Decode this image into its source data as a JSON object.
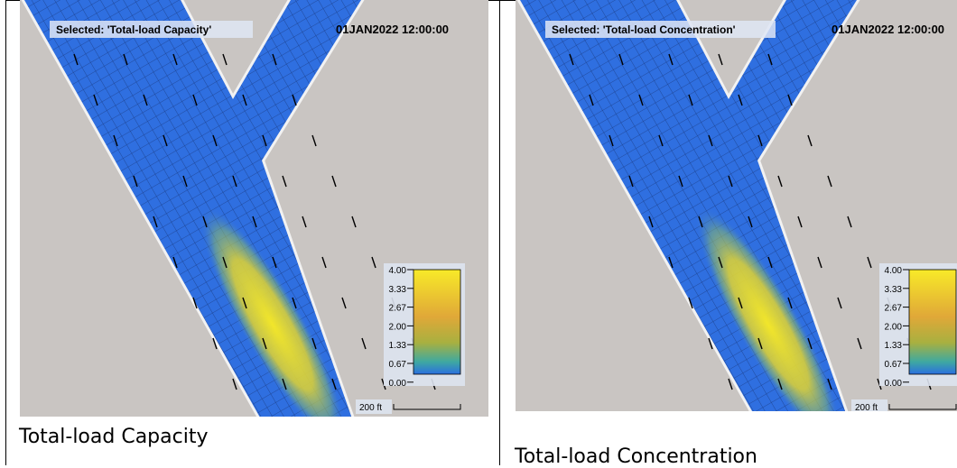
{
  "panels": [
    {
      "selected": "Selected: 'Total-load Capacity'",
      "timestamp": "01JAN2022 12:00:00",
      "legend_ticks": [
        "4.00",
        "3.33",
        "2.67",
        "2.00",
        "1.33",
        "0.67",
        "0.00"
      ],
      "scale": "200 ft",
      "caption": "Total-load Capacity"
    },
    {
      "selected": "Selected: 'Total-load Concentration'",
      "timestamp": "01JAN2022 12:00:00",
      "legend_ticks": [
        "4.00",
        "3.33",
        "2.67",
        "2.00",
        "1.33",
        "0.67",
        "0.00"
      ],
      "scale": "200 ft",
      "caption": "Total-load Concentration"
    }
  ]
}
